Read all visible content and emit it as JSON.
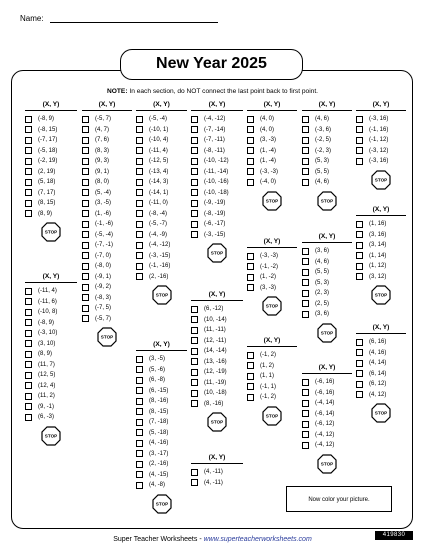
{
  "name_label": "Name:",
  "title": "New Year 2025",
  "note_bold": "NOTE:",
  "note_text": "In each section, do NOT connect the last point back to first point.",
  "header": "(X, Y)",
  "stop_label": "STOP",
  "color_instruction": "Now color your picture.",
  "footer_brand": "Super Teacher Worksheets",
  "footer_sep": " - ",
  "footer_url": "www.superteacherworksheets.com",
  "worksheet_code": "419830",
  "columns": [
    {
      "sections": [
        {
          "points": [
            "(-8, 9)",
            "(-8, 15)",
            "(-7, 17)",
            "(-5, 18)",
            "(-2, 19)",
            "(2, 19)",
            "(5, 18)",
            "(7, 17)",
            "(8, 15)",
            "(8, 9)"
          ]
        },
        {
          "points": [
            "(-11, 4)",
            "(-11, 6)",
            "(-10, 8)",
            "(-8, 9)",
            "(-3, 10)",
            "(3, 10)",
            "(8, 9)",
            "(11, 7)",
            "(12, 5)",
            "(12, 4)",
            "(11, 2)",
            "(9, -1)",
            "(6, -3)"
          ]
        }
      ]
    },
    {
      "sections": [
        {
          "points": [
            "(-5, 7)",
            "(4, 7)",
            "(7, 6)",
            "(8, 3)",
            "(9, 3)",
            "(9, 1)",
            "(8, 0)",
            "(5, -4)",
            "(3, -5)",
            "(1, -6)",
            "(-1, -6)",
            "(-5, -4)",
            "(-7, -1)",
            "(-7, 0)",
            "(-8, 0)",
            "(-9, 1)",
            "(-9, 2)",
            "(-8, 3)",
            "(-7, 5)",
            "(-5, 7)"
          ]
        }
      ]
    },
    {
      "sections": [
        {
          "points": [
            "(-5, -4)",
            "(-10, 1)",
            "(-10, 4)",
            "(-11, 4)",
            "(-12, 5)",
            "(-13, 4)",
            "(-14, 3)",
            "(-14, 1)",
            "(-11, 0)",
            "(-8, -4)",
            "(-5, -7)",
            "(-4, -9)",
            "(-4, -12)",
            "(-3, -15)",
            "(-1, -16)",
            "(2, -16)"
          ]
        },
        {
          "points": [
            "(3, -5)",
            "(5, -6)",
            "(6, -8)",
            "(6, -15)",
            "(8, -16)",
            "(8, -15)",
            "(7, -18)",
            "(5, -18)",
            "(4, -16)",
            "(3, -17)",
            "(2, -16)",
            "(4, -15)",
            "(4, -8)"
          ]
        }
      ]
    },
    {
      "sections": [
        {
          "points": [
            "(-4, -12)",
            "(-7, -14)",
            "(-7, -11)",
            "(-8, -11)",
            "(-10, -12)",
            "(-11, -14)",
            "(-10, -16)",
            "(-10, -18)",
            "(-9, -19)",
            "(-8, -19)",
            "(-6, -17)",
            "(-3, -15)"
          ]
        },
        {
          "points": [
            "(6, -12)",
            "(10, -14)",
            "(11, -11)",
            "(12, -11)",
            "(14, -14)",
            "(13, -16)",
            "(12, -19)",
            "(11, -19)",
            "(10, -18)",
            "(8, -16)"
          ]
        },
        {
          "points": [
            "(4, -11)",
            "(4, -11)"
          ]
        }
      ]
    },
    {
      "sections": [
        {
          "points": [
            "(4, 0)",
            "(4, 0)",
            "(3, -3)",
            "(1, -4)",
            "(1, -4)",
            "(-3, -3)",
            "(-4, 0)"
          ]
        },
        {
          "points": [
            "(-3, -3)",
            "(-1, -2)",
            "(1, -2)",
            "(3, -3)"
          ]
        },
        {
          "points": [
            "(-1, 2)",
            "(1, 2)",
            "(1, 1)",
            "(-1, 1)",
            "(-1, 2)"
          ]
        }
      ]
    },
    {
      "sections": [
        {
          "points": [
            "(4, 6)",
            "(-3, 6)",
            "(-2, 5)",
            "(-2, 3)",
            "(5, 3)",
            "(5, 5)",
            "(4, 6)"
          ]
        },
        {
          "points": [
            "(3, 6)",
            "(4, 6)",
            "(5, 5)",
            "(5, 3)",
            "(2, 3)",
            "(2, 5)",
            "(3, 6)"
          ]
        },
        {
          "points": [
            "(-6, 16)",
            "(-6, 16)",
            "(-4, 14)",
            "(-6, 14)",
            "(-6, 12)",
            "(-4, 12)",
            "(-4, 12)"
          ]
        }
      ]
    },
    {
      "sections": [
        {
          "points": [
            "(-3, 16)",
            "(-1, 16)",
            "(-1, 12)",
            "(-3, 12)",
            "(-3, 16)"
          ]
        },
        {
          "points": [
            "(1, 16)",
            "(3, 16)",
            "(3, 14)",
            "(1, 14)",
            "(1, 12)",
            "(3, 12)"
          ]
        },
        {
          "points": [
            "(6, 16)",
            "(4, 16)",
            "(4, 14)",
            "(6, 14)",
            "(6, 12)",
            "(4, 12)"
          ]
        }
      ]
    }
  ]
}
